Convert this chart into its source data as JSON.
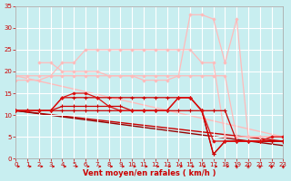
{
  "title": "",
  "xlabel": "Vent moyen/en rafales ( km/h )",
  "bg_color": "#c8eef0",
  "grid_color": "#ffffff",
  "xlim": [
    0,
    23
  ],
  "ylim": [
    0,
    35
  ],
  "yticks": [
    0,
    5,
    10,
    15,
    20,
    25,
    30,
    35
  ],
  "xticks": [
    0,
    1,
    2,
    3,
    4,
    5,
    6,
    7,
    8,
    9,
    10,
    11,
    12,
    13,
    14,
    15,
    16,
    17,
    18,
    19,
    20,
    21,
    22,
    23
  ],
  "lines": [
    {
      "x": [
        0,
        1,
        2,
        3,
        4,
        5,
        6,
        7,
        8,
        9,
        10,
        11,
        12,
        13,
        14,
        15,
        16,
        17,
        18,
        19,
        20,
        21,
        22,
        23
      ],
      "y": [
        19,
        19,
        19,
        19,
        19,
        19,
        19,
        19,
        19,
        19,
        19,
        19,
        19,
        19,
        19,
        19,
        19,
        19,
        19,
        5,
        5,
        5,
        5,
        5
      ],
      "color": "#ffbbbb",
      "lw": 0.9,
      "marker": "D",
      "ms": 1.5,
      "linestyle": "-",
      "zorder": 2
    },
    {
      "x": [
        0,
        1,
        2,
        3,
        4,
        5,
        6,
        7,
        8,
        9,
        10,
        11,
        12,
        13,
        14,
        15,
        16,
        17,
        18,
        19,
        20,
        21,
        22,
        23
      ],
      "y": [
        18,
        18,
        18,
        19,
        22,
        22,
        25,
        25,
        25,
        25,
        25,
        25,
        25,
        25,
        25,
        25,
        22,
        22,
        5,
        5,
        5,
        5,
        5,
        5
      ],
      "color": "#ffbbbb",
      "lw": 0.9,
      "marker": "D",
      "ms": 1.5,
      "linestyle": "-",
      "zorder": 2
    },
    {
      "x": [
        2,
        3,
        4,
        5,
        6,
        7,
        8,
        9,
        10,
        11,
        12,
        13,
        14,
        15,
        16,
        17,
        18,
        19,
        20,
        21,
        22,
        23
      ],
      "y": [
        22,
        22,
        20,
        20,
        20,
        20,
        19,
        19,
        19,
        18,
        18,
        18,
        19,
        33,
        33,
        32,
        22,
        32,
        5,
        5,
        5,
        5
      ],
      "color": "#ffbbbb",
      "lw": 0.9,
      "marker": "D",
      "ms": 1.5,
      "linestyle": "-",
      "zorder": 2
    },
    {
      "x": [
        0,
        23
      ],
      "y": [
        19,
        5
      ],
      "color": "#ffbbbb",
      "lw": 1.0,
      "marker": null,
      "ms": 0,
      "linestyle": "-",
      "zorder": 1
    },
    {
      "x": [
        0,
        23
      ],
      "y": [
        11,
        4
      ],
      "color": "#cc0000",
      "lw": 1.0,
      "marker": null,
      "ms": 0,
      "linestyle": "-",
      "zorder": 1
    },
    {
      "x": [
        0,
        23
      ],
      "y": [
        11,
        3
      ],
      "color": "#990000",
      "lw": 1.0,
      "marker": null,
      "ms": 0,
      "linestyle": "-",
      "zorder": 1
    },
    {
      "x": [
        0,
        1,
        2,
        3,
        4,
        5,
        6,
        7,
        8,
        9,
        10,
        11,
        12,
        13,
        14,
        15,
        16,
        17,
        18,
        19,
        20,
        21,
        22,
        23
      ],
      "y": [
        11,
        11,
        11,
        11,
        11,
        11,
        11,
        11,
        11,
        11,
        11,
        11,
        11,
        11,
        11,
        11,
        11,
        11,
        11,
        4,
        4,
        4,
        4,
        4
      ],
      "color": "#cc0000",
      "lw": 0.9,
      "marker": "+",
      "ms": 3,
      "linestyle": "-",
      "zorder": 3
    },
    {
      "x": [
        0,
        1,
        2,
        3,
        4,
        5,
        6,
        7,
        8,
        9,
        10,
        11,
        12,
        13,
        14,
        15,
        16,
        17,
        18,
        19,
        20,
        21,
        22,
        23
      ],
      "y": [
        11,
        11,
        11,
        11,
        12,
        12,
        12,
        12,
        12,
        12,
        11,
        11,
        11,
        11,
        14,
        14,
        11,
        1,
        4,
        4,
        4,
        4,
        4,
        4
      ],
      "color": "#cc0000",
      "lw": 0.9,
      "marker": "+",
      "ms": 3,
      "linestyle": "-",
      "zorder": 3
    },
    {
      "x": [
        0,
        1,
        2,
        3,
        4,
        5,
        6,
        7,
        8,
        9,
        10,
        11,
        12,
        13,
        14,
        15,
        16,
        17,
        18,
        19,
        20,
        21,
        22,
        23
      ],
      "y": [
        11,
        11,
        11,
        11,
        14,
        14,
        14,
        14,
        14,
        14,
        14,
        14,
        14,
        14,
        14,
        14,
        11,
        1,
        4,
        4,
        4,
        4,
        4,
        4
      ],
      "color": "#cc0000",
      "lw": 0.9,
      "marker": "+",
      "ms": 3,
      "linestyle": "-",
      "zorder": 3
    },
    {
      "x": [
        0,
        1,
        2,
        3,
        4,
        5,
        6,
        7,
        8,
        9,
        10,
        11,
        12,
        13,
        14,
        15,
        16,
        17,
        18,
        19,
        20,
        21,
        22,
        23
      ],
      "y": [
        11,
        11,
        11,
        11,
        14,
        15,
        15,
        14,
        12,
        11,
        11,
        11,
        11,
        11,
        14,
        14,
        11,
        4,
        4,
        4,
        4,
        4,
        5,
        5
      ],
      "color": "#dd1111",
      "lw": 0.9,
      "marker": "D",
      "ms": 1.5,
      "linestyle": "-",
      "zorder": 3
    }
  ],
  "xlabel_color": "#cc0000",
  "tick_color": "#cc0000",
  "tick_fontsize": 5.0,
  "xlabel_fontsize": 6.0,
  "axis_color": "#aaaaaa",
  "arrow_color": "#cc0000",
  "right_arrows": [
    19,
    20,
    21,
    22,
    23
  ],
  "left_arrows": [],
  "horizontal_arrows": [
    0,
    1,
    2,
    3,
    4,
    5,
    6,
    7,
    8,
    9,
    10,
    11,
    12,
    13,
    14,
    15,
    16,
    17,
    18
  ]
}
